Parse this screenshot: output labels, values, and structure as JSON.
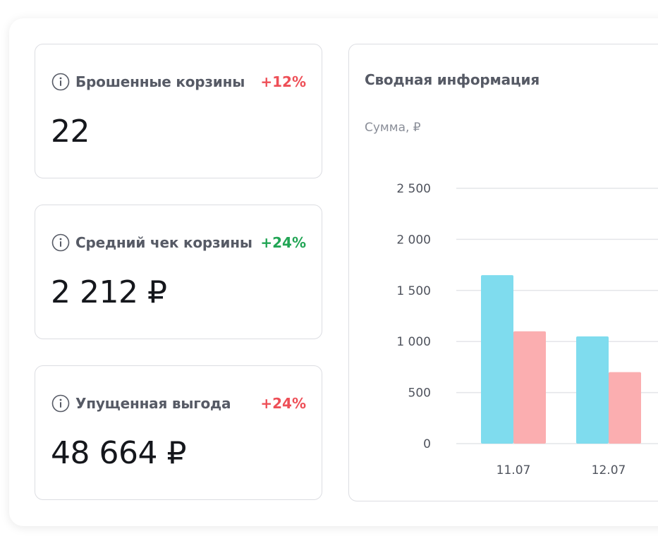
{
  "cards": [
    {
      "title": "Брошенные корзины",
      "delta": "+12%",
      "delta_color": "#ee4f57",
      "value": "22"
    },
    {
      "title": "Средний чек корзины",
      "delta": "+24%",
      "delta_color": "#22a555",
      "value": "2 212 ₽"
    },
    {
      "title": "Упущенная выгода",
      "delta": "+24%",
      "delta_color": "#ee4f57",
      "value": "48 664 ₽"
    }
  ],
  "icons": {
    "info": "info-circle-icon"
  },
  "colors": {
    "bar_primary": "#7fdcee",
    "bar_secondary": "#fbaeb0",
    "grid": "#e4e5e9"
  },
  "chart_data": {
    "type": "bar",
    "title": "Сводная информация",
    "ylabel": "Сумма, ₽",
    "xlabel": "",
    "categories": [
      "11.07",
      "12.07"
    ],
    "series": [
      {
        "values": [
          1650,
          1050
        ]
      },
      {
        "values": [
          1100,
          700
        ]
      }
    ],
    "ylim": [
      0,
      2500
    ],
    "yticks": [
      0,
      500,
      1000,
      1500,
      2000,
      2500
    ],
    "ytick_labels": [
      "0",
      "500",
      "1 000",
      "1 500",
      "2 000",
      "2 500"
    ],
    "grid": true,
    "legend": "none"
  }
}
